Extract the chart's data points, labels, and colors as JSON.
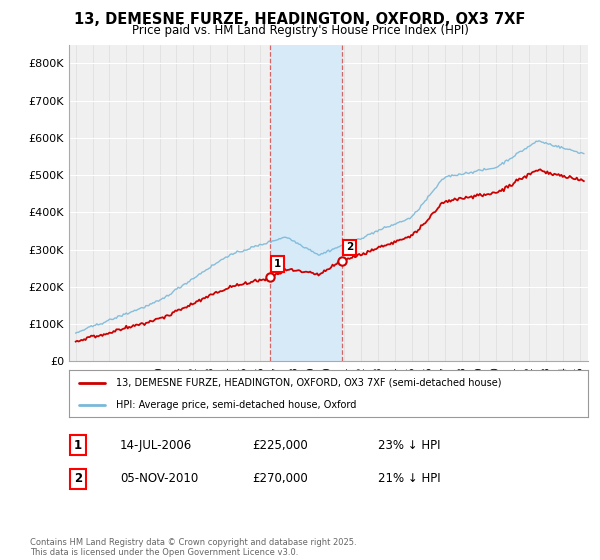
{
  "title": "13, DEMESNE FURZE, HEADINGTON, OXFORD, OX3 7XF",
  "subtitle": "Price paid vs. HM Land Registry's House Price Index (HPI)",
  "ylim": [
    0,
    850000
  ],
  "yticks": [
    0,
    100000,
    200000,
    300000,
    400000,
    500000,
    600000,
    700000,
    800000
  ],
  "ytick_labels": [
    "£0",
    "£100K",
    "£200K",
    "£300K",
    "£400K",
    "£500K",
    "£600K",
    "£700K",
    "£800K"
  ],
  "sale1_date": 2006.54,
  "sale1_price": 225000,
  "sale2_date": 2010.84,
  "sale2_price": 270000,
  "hpi_color": "#7ab8d9",
  "sale_color": "#cc0000",
  "shading_color": "#d6eaf8",
  "legend1": "13, DEMESNE FURZE, HEADINGTON, OXFORD, OX3 7XF (semi-detached house)",
  "legend2": "HPI: Average price, semi-detached house, Oxford",
  "sale1_date_text": "14-JUL-2006",
  "sale1_price_text": "£225,000",
  "sale1_pct_text": "23% ↓ HPI",
  "sale2_date_text": "05-NOV-2010",
  "sale2_price_text": "£270,000",
  "sale2_pct_text": "21% ↓ HPI",
  "footnote": "Contains HM Land Registry data © Crown copyright and database right 2025.\nThis data is licensed under the Open Government Licence v3.0.",
  "bg_color": "#f0f0f0"
}
